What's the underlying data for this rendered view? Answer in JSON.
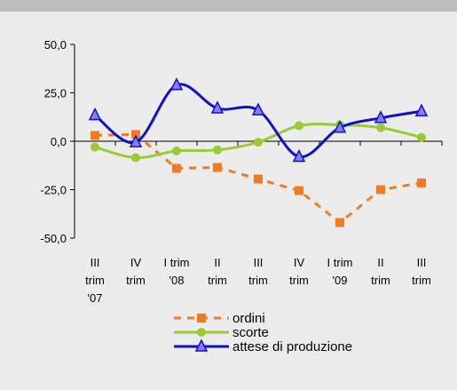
{
  "chart_data": {
    "type": "line",
    "categories": [
      [
        "III",
        "trim",
        "'07"
      ],
      [
        "IV",
        "trim"
      ],
      [
        "I trim",
        "'08"
      ],
      [
        "II",
        "trim"
      ],
      [
        "III",
        "trim"
      ],
      [
        "IV",
        "trim"
      ],
      [
        "I trim",
        "'09"
      ],
      [
        "II",
        "trim"
      ],
      [
        "III",
        "trim"
      ]
    ],
    "series": [
      {
        "name": "ordini",
        "color": "#f07c22",
        "dashed": true,
        "smooth": false,
        "marker": "square",
        "values": [
          3,
          3.5,
          -14,
          -13.5,
          -19.5,
          -25.5,
          -42,
          -25,
          -21.5
        ]
      },
      {
        "name": "scorte",
        "color": "#99cc33",
        "dashed": false,
        "smooth": true,
        "marker": "circle",
        "values": [
          -3,
          -8.5,
          -5,
          -4.5,
          -0.5,
          8,
          8.5,
          7,
          2
        ]
      },
      {
        "name": "attese di produzione",
        "color": "#1010cc",
        "dashed": false,
        "smooth": true,
        "marker": "triangle",
        "values": [
          13.5,
          -0.5,
          29,
          17,
          16,
          -8,
          7,
          12,
          15.5
        ]
      }
    ],
    "ylim": [
      -50,
      50
    ],
    "yticks": [
      {
        "value": -50,
        "label": "-50,0"
      },
      {
        "value": -25,
        "label": "-25,0"
      },
      {
        "value": 0,
        "label": "0,0"
      },
      {
        "value": 25,
        "label": "25,0"
      },
      {
        "value": 50,
        "label": "50,0"
      }
    ]
  }
}
